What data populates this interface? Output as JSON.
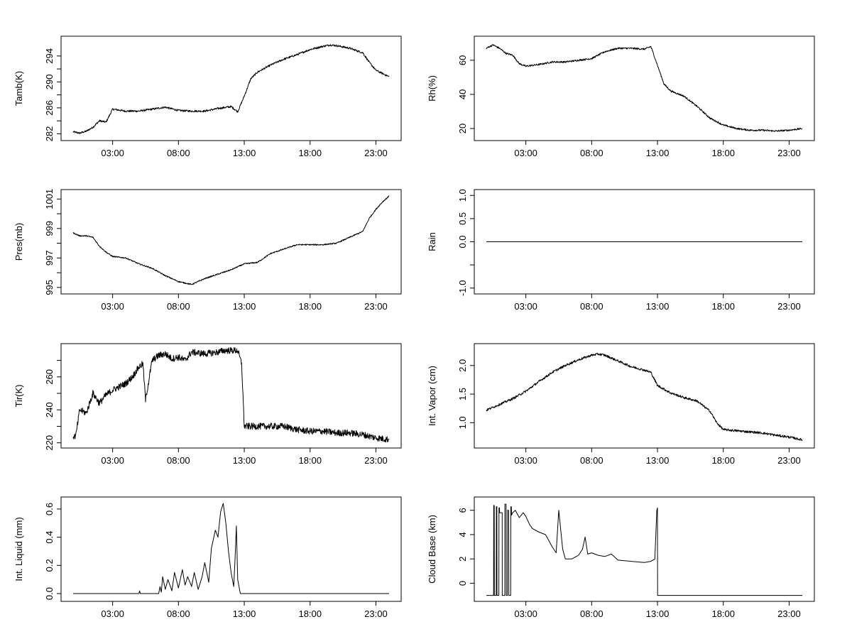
{
  "chart_data": [
    {
      "id": "tamb",
      "type": "line",
      "ylabel": "Tamb(K)",
      "ylim": [
        281.5,
        296.5
      ],
      "xlim": [
        0,
        24.5
      ],
      "x_ticks": [
        3,
        8,
        13,
        18,
        23
      ],
      "x_tick_labels": [
        "03:00",
        "08:00",
        "13:00",
        "18:00",
        "23:00"
      ],
      "y_ticks": [
        282,
        286,
        290,
        294
      ],
      "y_minor_ticks": [
        284,
        288,
        292
      ],
      "y_tick_labels": [
        "282",
        "286",
        "290",
        "294"
      ],
      "noise": 0.15,
      "x": [
        0.0,
        0.5,
        1.0,
        1.5,
        2.0,
        2.5,
        3.0,
        4.0,
        5.0,
        6.0,
        7.0,
        8.0,
        9.0,
        10.0,
        11.0,
        12.0,
        12.5,
        13.0,
        13.5,
        14.0,
        15.0,
        16.0,
        17.0,
        18.0,
        19.0,
        19.5,
        20.0,
        21.0,
        22.0,
        22.5,
        23.0,
        24.0
      ],
      "y": [
        282.3,
        282.1,
        282.4,
        283.0,
        284.0,
        283.8,
        285.8,
        285.5,
        285.5,
        285.8,
        286.1,
        285.6,
        285.5,
        285.5,
        285.9,
        286.2,
        285.4,
        287.8,
        290.5,
        291.5,
        292.6,
        293.5,
        294.2,
        295.0,
        295.5,
        295.7,
        295.6,
        295.2,
        294.5,
        293.0,
        291.8,
        290.8
      ]
    },
    {
      "id": "rh",
      "type": "line",
      "ylabel": "Rh(%)",
      "ylim": [
        15,
        72
      ],
      "xlim": [
        0,
        24.5
      ],
      "x_ticks": [
        3,
        8,
        13,
        18,
        23
      ],
      "x_tick_labels": [
        "03:00",
        "08:00",
        "13:00",
        "18:00",
        "23:00"
      ],
      "y_ticks": [
        20,
        40,
        60
      ],
      "y_minor_ticks": [],
      "y_tick_labels": [
        "20",
        "40",
        "60"
      ],
      "noise": 0.5,
      "x": [
        0.0,
        0.5,
        1.0,
        1.5,
        2.0,
        2.5,
        3.0,
        4.0,
        5.0,
        6.0,
        7.0,
        8.0,
        9.0,
        10.0,
        11.0,
        12.0,
        12.5,
        13.0,
        13.5,
        14.0,
        15.0,
        16.0,
        17.0,
        18.0,
        19.0,
        20.0,
        21.0,
        22.0,
        23.0,
        24.0
      ],
      "y": [
        67,
        69,
        67,
        64,
        63,
        58,
        56.5,
        57.5,
        59,
        59,
        60,
        61,
        65,
        67,
        67,
        66.5,
        68,
        57,
        46,
        42,
        39,
        33,
        26,
        22,
        20,
        19,
        19,
        18.5,
        19,
        20
      ]
    },
    {
      "id": "pres",
      "type": "line",
      "ylabel": "Pres(mb)",
      "ylim": [
        994.8,
        1001.4
      ],
      "xlim": [
        0,
        24.5
      ],
      "x_ticks": [
        3,
        8,
        13,
        18,
        23
      ],
      "x_tick_labels": [
        "03:00",
        "08:00",
        "13:00",
        "18:00",
        "23:00"
      ],
      "y_ticks": [
        995,
        997,
        999,
        1001
      ],
      "y_minor_ticks": [
        996,
        998,
        1000
      ],
      "y_tick_labels": [
        "995",
        "997",
        "999",
        "1001"
      ],
      "noise": 0.04,
      "x": [
        0.0,
        0.5,
        1.0,
        1.5,
        2.0,
        2.5,
        3.0,
        4.0,
        5.0,
        6.0,
        7.0,
        8.0,
        9.0,
        10.0,
        11.0,
        12.0,
        13.0,
        14.0,
        15.0,
        16.0,
        17.0,
        18.0,
        19.0,
        20.0,
        21.0,
        22.0,
        22.5,
        23.0,
        23.5,
        24.0
      ],
      "y": [
        998.7,
        998.5,
        998.5,
        998.4,
        997.8,
        997.4,
        997.1,
        997.0,
        996.6,
        996.3,
        995.8,
        995.4,
        995.2,
        995.6,
        995.9,
        996.2,
        996.6,
        996.7,
        997.3,
        997.6,
        997.9,
        997.9,
        997.9,
        998.0,
        998.4,
        998.8,
        999.7,
        1000.3,
        1000.8,
        1001.2
      ]
    },
    {
      "id": "rain",
      "type": "line",
      "ylabel": "Rain",
      "ylim": [
        -1.05,
        1.05
      ],
      "xlim": [
        0,
        24.5
      ],
      "x_ticks": [
        3,
        8,
        13,
        18,
        23
      ],
      "x_tick_labels": [
        "03:00",
        "08:00",
        "13:00",
        "18:00",
        "23:00"
      ],
      "y_ticks": [
        -1.0,
        -0.5,
        0.0,
        0.5,
        1.0
      ],
      "y_minor_ticks": [],
      "y_tick_labels": [
        "-1.0",
        "",
        "0.0",
        "0.5",
        "1.0"
      ],
      "noise": 0,
      "x": [
        0.0,
        24.0
      ],
      "y": [
        0.0,
        0.0
      ]
    },
    {
      "id": "tir",
      "type": "line",
      "ylabel": "Tir(K)",
      "ylim": [
        219,
        278
      ],
      "xlim": [
        0,
        24.5
      ],
      "x_ticks": [
        3,
        8,
        13,
        18,
        23
      ],
      "x_tick_labels": [
        "03:00",
        "08:00",
        "13:00",
        "18:00",
        "23:00"
      ],
      "y_ticks": [
        220,
        240,
        260
      ],
      "y_minor_ticks": [
        230,
        250,
        270
      ],
      "y_tick_labels": [
        "220",
        "240",
        "260"
      ],
      "noise": 2.0,
      "x": [
        0.0,
        0.2,
        0.5,
        1.0,
        1.5,
        2.0,
        2.5,
        3.0,
        3.5,
        4.0,
        4.5,
        5.0,
        5.3,
        5.5,
        6.0,
        6.5,
        7.0,
        7.5,
        8.0,
        8.5,
        9.0,
        10.0,
        11.0,
        11.5,
        12.0,
        12.5,
        12.8,
        13.0,
        13.5,
        14.0,
        15.0,
        16.0,
        17.0,
        18.0,
        19.0,
        20.0,
        21.0,
        22.0,
        23.0,
        24.0
      ],
      "y": [
        224,
        224,
        240,
        238,
        250,
        244,
        249,
        252,
        254,
        256,
        260,
        266,
        268,
        246,
        270,
        273,
        274,
        271,
        272,
        270,
        275,
        274,
        275,
        276,
        276,
        276,
        268,
        230,
        230,
        230,
        230,
        230,
        228,
        227,
        227,
        226,
        226,
        225,
        223,
        222
      ]
    },
    {
      "id": "vapor",
      "type": "line",
      "ylabel": "Int. Vapor (cm)",
      "ylim": [
        0.62,
        2.32
      ],
      "xlim": [
        0,
        24.5
      ],
      "x_ticks": [
        3,
        8,
        13,
        18,
        23
      ],
      "x_tick_labels": [
        "03:00",
        "08:00",
        "13:00",
        "18:00",
        "23:00"
      ],
      "y_ticks": [
        1.0,
        1.5,
        2.0
      ],
      "y_minor_ticks": [],
      "y_tick_labels": [
        "1.0",
        "1.5",
        "2.0"
      ],
      "noise": 0.02,
      "x": [
        0.0,
        1.0,
        2.0,
        3.0,
        4.0,
        5.0,
        6.0,
        7.0,
        8.0,
        8.5,
        9.0,
        10.0,
        11.0,
        12.0,
        12.5,
        13.0,
        14.0,
        15.0,
        16.0,
        17.0,
        17.5,
        18.0,
        19.0,
        20.0,
        21.0,
        22.0,
        23.0,
        24.0
      ],
      "y": [
        1.22,
        1.32,
        1.42,
        1.55,
        1.72,
        1.88,
        2.0,
        2.1,
        2.18,
        2.2,
        2.18,
        2.08,
        1.98,
        1.92,
        1.88,
        1.65,
        1.52,
        1.44,
        1.38,
        1.2,
        1.0,
        0.88,
        0.86,
        0.84,
        0.82,
        0.78,
        0.75,
        0.7
      ]
    },
    {
      "id": "liquid",
      "type": "line",
      "ylabel": "Int. Liquid (mm)",
      "ylim": [
        -0.03,
        0.66
      ],
      "xlim": [
        0,
        24.5
      ],
      "x_ticks": [
        3,
        8,
        13,
        18,
        23
      ],
      "x_tick_labels": [
        "03:00",
        "08:00",
        "13:00",
        "18:00",
        "23:00"
      ],
      "y_ticks": [
        0.0,
        0.2,
        0.4,
        0.6
      ],
      "y_minor_ticks": [],
      "y_tick_labels": [
        "0.0",
        "0.2",
        "0.4",
        "0.6"
      ],
      "noise": 0,
      "x": [
        0.0,
        5.0,
        5.05,
        5.1,
        6.0,
        6.5,
        6.6,
        6.7,
        6.8,
        7.0,
        7.2,
        7.5,
        7.7,
        8.0,
        8.3,
        8.5,
        8.7,
        9.0,
        9.2,
        9.5,
        9.8,
        10.0,
        10.3,
        10.5,
        10.8,
        11.0,
        11.2,
        11.4,
        11.6,
        11.8,
        12.0,
        12.2,
        12.3,
        12.4,
        12.5,
        12.7,
        13.0,
        24.0
      ],
      "y": [
        0.0,
        0.0,
        0.02,
        0.0,
        0.0,
        0.0,
        0.05,
        0.01,
        0.12,
        0.03,
        0.1,
        0.02,
        0.15,
        0.04,
        0.17,
        0.06,
        0.12,
        0.05,
        0.15,
        0.03,
        0.12,
        0.22,
        0.08,
        0.32,
        0.45,
        0.4,
        0.58,
        0.64,
        0.5,
        0.3,
        0.15,
        0.05,
        0.25,
        0.48,
        0.1,
        0.0,
        0.0,
        0.0
      ]
    },
    {
      "id": "cloud",
      "type": "line",
      "ylabel": "Cloud Base (km)",
      "ylim": [
        -1.2,
        6.8
      ],
      "xlim": [
        0,
        24.5
      ],
      "x_ticks": [
        3,
        8,
        13,
        18,
        23
      ],
      "x_tick_labels": [
        "03:00",
        "08:00",
        "13:00",
        "18:00",
        "23:00"
      ],
      "y_ticks": [
        0,
        2,
        4,
        6
      ],
      "y_minor_ticks": [],
      "y_tick_labels": [
        "0",
        "2",
        "4",
        "6"
      ],
      "noise": 0,
      "x": [
        0.0,
        0.55,
        0.56,
        0.6,
        0.61,
        0.75,
        0.76,
        0.8,
        0.81,
        0.95,
        0.96,
        1.0,
        1.01,
        1.2,
        1.21,
        1.4,
        1.41,
        1.5,
        1.51,
        1.6,
        1.61,
        1.7,
        1.71,
        1.85,
        1.86,
        1.9,
        1.91,
        2.0,
        2.2,
        2.5,
        2.8,
        3.0,
        3.3,
        3.5,
        4.0,
        4.5,
        5.0,
        5.3,
        5.5,
        5.8,
        6.0,
        6.5,
        7.0,
        7.3,
        7.5,
        7.7,
        8.0,
        8.5,
        9.0,
        9.5,
        10.0,
        11.0,
        12.0,
        12.5,
        12.8,
        12.95,
        13.0,
        13.01,
        24.0
      ],
      "y": [
        -1.0,
        -1.0,
        6.4,
        6.4,
        -1.0,
        -1.0,
        6.3,
        6.3,
        -1.0,
        -1.0,
        6.2,
        6.2,
        5.8,
        5.8,
        -1.0,
        -1.0,
        6.5,
        6.5,
        -1.0,
        -1.0,
        6.0,
        6.0,
        -1.0,
        -1.0,
        6.3,
        6.3,
        5.6,
        5.8,
        6.0,
        5.4,
        5.8,
        5.5,
        4.8,
        4.5,
        4.2,
        4.0,
        3.0,
        2.5,
        6.0,
        2.8,
        2.0,
        2.0,
        2.3,
        2.8,
        3.8,
        2.4,
        2.5,
        2.3,
        2.2,
        2.4,
        1.9,
        1.8,
        1.7,
        1.8,
        2.0,
        6.0,
        6.2,
        -1.0,
        -1.0
      ]
    }
  ]
}
